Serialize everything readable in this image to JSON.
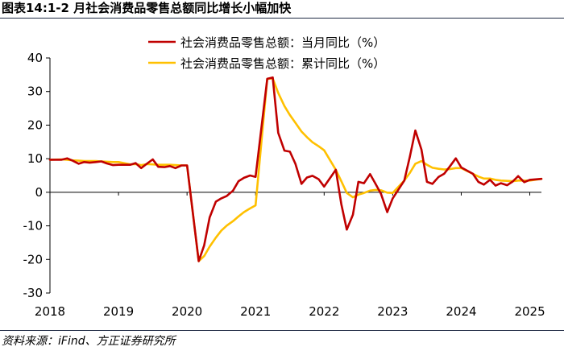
{
  "figure": {
    "title": "图表14:1-2 月社会消费品零售总额同比增长小幅加快",
    "source": "资料来源：iFind、方正证券研究所"
  },
  "chart_data": {
    "type": "line",
    "title": "图表14:1-2 月社会消费品零售总额同比增长小幅加快",
    "xlabel": "",
    "ylabel": "",
    "xlim": [
      2018.0,
      2025.17
    ],
    "ylim": [
      -30,
      40
    ],
    "yticks": [
      40,
      30,
      20,
      10,
      0,
      -10,
      -20,
      -30
    ],
    "xticks": [
      "2018",
      "2019",
      "2020",
      "2021",
      "2022",
      "2023",
      "2024",
      "2025"
    ],
    "legend_position": "top-center",
    "grid": false,
    "series": [
      {
        "name": "社会消费品零售总额：当月同比（%）",
        "color": "#c00000",
        "points": [
          [
            2018.0,
            9.7
          ],
          [
            2018.17,
            9.7
          ],
          [
            2018.25,
            10.1
          ],
          [
            2018.33,
            9.4
          ],
          [
            2018.42,
            8.5
          ],
          [
            2018.5,
            9.0
          ],
          [
            2018.58,
            8.8
          ],
          [
            2018.67,
            9.0
          ],
          [
            2018.75,
            9.2
          ],
          [
            2018.83,
            8.6
          ],
          [
            2018.92,
            8.1
          ],
          [
            2019.0,
            8.2
          ],
          [
            2019.17,
            8.2
          ],
          [
            2019.25,
            8.7
          ],
          [
            2019.33,
            7.2
          ],
          [
            2019.42,
            8.6
          ],
          [
            2019.5,
            9.8
          ],
          [
            2019.58,
            7.6
          ],
          [
            2019.67,
            7.5
          ],
          [
            2019.75,
            7.8
          ],
          [
            2019.83,
            7.2
          ],
          [
            2019.92,
            8.0
          ],
          [
            2020.0,
            8.0
          ],
          [
            2020.17,
            -20.5
          ],
          [
            2020.25,
            -15.8
          ],
          [
            2020.33,
            -7.5
          ],
          [
            2020.42,
            -2.8
          ],
          [
            2020.5,
            -1.8
          ],
          [
            2020.58,
            -1.1
          ],
          [
            2020.67,
            0.5
          ],
          [
            2020.75,
            3.3
          ],
          [
            2020.83,
            4.3
          ],
          [
            2020.92,
            5.0
          ],
          [
            2021.0,
            4.6
          ],
          [
            2021.17,
            33.8
          ],
          [
            2021.25,
            34.2
          ],
          [
            2021.33,
            17.7
          ],
          [
            2021.42,
            12.4
          ],
          [
            2021.5,
            12.1
          ],
          [
            2021.58,
            8.5
          ],
          [
            2021.67,
            2.5
          ],
          [
            2021.75,
            4.4
          ],
          [
            2021.83,
            4.9
          ],
          [
            2021.92,
            3.9
          ],
          [
            2022.0,
            1.7
          ],
          [
            2022.17,
            6.7
          ],
          [
            2022.25,
            -3.5
          ],
          [
            2022.33,
            -11.1
          ],
          [
            2022.42,
            -6.7
          ],
          [
            2022.5,
            3.1
          ],
          [
            2022.58,
            2.7
          ],
          [
            2022.67,
            5.4
          ],
          [
            2022.75,
            2.5
          ],
          [
            2022.83,
            -0.5
          ],
          [
            2022.92,
            -5.9
          ],
          [
            2023.0,
            -1.8
          ],
          [
            2023.17,
            3.5
          ],
          [
            2023.25,
            10.6
          ],
          [
            2023.33,
            18.4
          ],
          [
            2023.42,
            12.7
          ],
          [
            2023.5,
            3.1
          ],
          [
            2023.58,
            2.5
          ],
          [
            2023.67,
            4.6
          ],
          [
            2023.75,
            5.5
          ],
          [
            2023.83,
            7.6
          ],
          [
            2023.92,
            10.1
          ],
          [
            2024.0,
            7.4
          ],
          [
            2024.17,
            5.5
          ],
          [
            2024.25,
            3.1
          ],
          [
            2024.33,
            2.3
          ],
          [
            2024.42,
            3.7
          ],
          [
            2024.5,
            2.0
          ],
          [
            2024.58,
            2.7
          ],
          [
            2024.67,
            2.1
          ],
          [
            2024.75,
            3.2
          ],
          [
            2024.83,
            4.8
          ],
          [
            2024.92,
            3.0
          ],
          [
            2025.0,
            3.7
          ],
          [
            2025.17,
            4.0
          ]
        ]
      },
      {
        "name": "社会消费品零售总额：累计同比（%）",
        "color": "#ffc000",
        "points": [
          [
            2018.0,
            9.7
          ],
          [
            2018.17,
            9.8
          ],
          [
            2018.25,
            9.7
          ],
          [
            2018.33,
            9.5
          ],
          [
            2018.42,
            9.4
          ],
          [
            2018.5,
            9.3
          ],
          [
            2018.58,
            9.3
          ],
          [
            2018.67,
            9.3
          ],
          [
            2018.75,
            9.2
          ],
          [
            2018.83,
            9.1
          ],
          [
            2018.92,
            9.0
          ],
          [
            2019.0,
            9.0
          ],
          [
            2019.17,
            8.3
          ],
          [
            2019.25,
            8.4
          ],
          [
            2019.33,
            8.1
          ],
          [
            2019.42,
            8.4
          ],
          [
            2019.5,
            8.3
          ],
          [
            2019.58,
            8.2
          ],
          [
            2019.67,
            8.2
          ],
          [
            2019.75,
            8.2
          ],
          [
            2019.83,
            8.1
          ],
          [
            2019.92,
            8.0
          ],
          [
            2020.0,
            8.0
          ],
          [
            2020.17,
            -20.5
          ],
          [
            2020.25,
            -19.0
          ],
          [
            2020.33,
            -16.2
          ],
          [
            2020.42,
            -13.5
          ],
          [
            2020.5,
            -11.4
          ],
          [
            2020.58,
            -9.9
          ],
          [
            2020.67,
            -8.6
          ],
          [
            2020.75,
            -7.2
          ],
          [
            2020.83,
            -5.9
          ],
          [
            2020.92,
            -4.8
          ],
          [
            2021.0,
            -3.9
          ],
          [
            2021.17,
            33.8
          ],
          [
            2021.25,
            33.9
          ],
          [
            2021.33,
            29.6
          ],
          [
            2021.42,
            25.7
          ],
          [
            2021.5,
            23.0
          ],
          [
            2021.58,
            20.7
          ],
          [
            2021.67,
            18.1
          ],
          [
            2021.75,
            16.4
          ],
          [
            2021.83,
            14.9
          ],
          [
            2021.92,
            13.7
          ],
          [
            2022.0,
            12.5
          ],
          [
            2022.17,
            6.7
          ],
          [
            2022.25,
            3.3
          ],
          [
            2022.33,
            -0.2
          ],
          [
            2022.42,
            -1.5
          ],
          [
            2022.5,
            -0.7
          ],
          [
            2022.58,
            -0.2
          ],
          [
            2022.67,
            0.5
          ],
          [
            2022.75,
            0.7
          ],
          [
            2022.83,
            0.6
          ],
          [
            2022.92,
            -0.1
          ],
          [
            2023.0,
            -0.2
          ],
          [
            2023.17,
            3.5
          ],
          [
            2023.25,
            5.8
          ],
          [
            2023.33,
            8.5
          ],
          [
            2023.42,
            9.3
          ],
          [
            2023.5,
            8.2
          ],
          [
            2023.58,
            7.3
          ],
          [
            2023.67,
            7.0
          ],
          [
            2023.75,
            6.8
          ],
          [
            2023.83,
            6.9
          ],
          [
            2023.92,
            7.2
          ],
          [
            2024.0,
            7.2
          ],
          [
            2024.17,
            5.5
          ],
          [
            2024.25,
            4.7
          ],
          [
            2024.33,
            4.1
          ],
          [
            2024.42,
            4.1
          ],
          [
            2024.5,
            3.7
          ],
          [
            2024.58,
            3.5
          ],
          [
            2024.67,
            3.4
          ],
          [
            2024.75,
            3.3
          ],
          [
            2024.83,
            3.5
          ],
          [
            2024.92,
            3.5
          ],
          [
            2025.0,
            3.5
          ],
          [
            2025.17,
            4.0
          ]
        ]
      }
    ]
  }
}
